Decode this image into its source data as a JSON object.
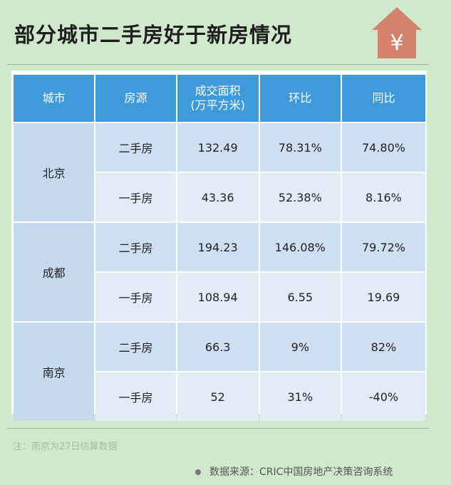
{
  "title": "部分城市二手房好于新房情况",
  "icon": "house-yen-icon",
  "colors": {
    "header": "#3f9ad9",
    "house": "#d4826c",
    "background": "#d0e8cc"
  },
  "table": {
    "headers": [
      "城市",
      "房源",
      "成交面积\n(万平方米)",
      "环比",
      "同比"
    ],
    "header_area_line1": "成交面积",
    "header_area_line2": "(万平方米)",
    "groups": [
      {
        "city": "北京",
        "rows": [
          [
            "二手房",
            "132.49",
            "78.31%",
            "74.80%"
          ],
          [
            "一手房",
            "43.36",
            "52.38%",
            "8.16%"
          ]
        ]
      },
      {
        "city": "成都",
        "rows": [
          [
            "二手房",
            "194.23",
            "146.08%",
            "79.72%"
          ],
          [
            "一手房",
            "108.94",
            "6.55",
            "19.69"
          ]
        ]
      },
      {
        "city": "南京",
        "rows": [
          [
            "二手房",
            "66.3",
            "9%",
            "82%"
          ],
          [
            "一手房",
            "52",
            "31%",
            "-40%"
          ]
        ]
      }
    ]
  },
  "note": "注：南京为27日估算数据",
  "source": "数据来源：CRIC中国房地产决策咨询系统"
}
